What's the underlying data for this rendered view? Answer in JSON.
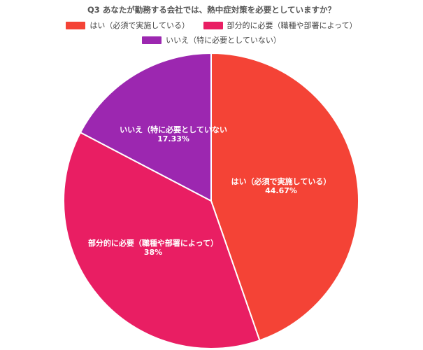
{
  "chart_data": {
    "type": "pie",
    "title": "Q3 あなたが勤務する会社では、熱中症対策を必要としていますか？",
    "legend_position": "top",
    "slices": [
      {
        "label": "はい（必須で実施している）",
        "short_label": "はい（必須で実施している）",
        "value": 44.67,
        "value_label": "44.67%",
        "color": "#f44336"
      },
      {
        "label": "部分的に必要（職種や部署によって）",
        "short_label": "部分的に必要（職種や部署によって）",
        "value": 38,
        "value_label": "38%",
        "color": "#e91e63"
      },
      {
        "label": "いいえ（特に必要としていない）",
        "short_label": "いいえ（特に必要としていない",
        "value": 17.33,
        "value_label": "17.33%",
        "color": "#9c27b0"
      }
    ]
  }
}
